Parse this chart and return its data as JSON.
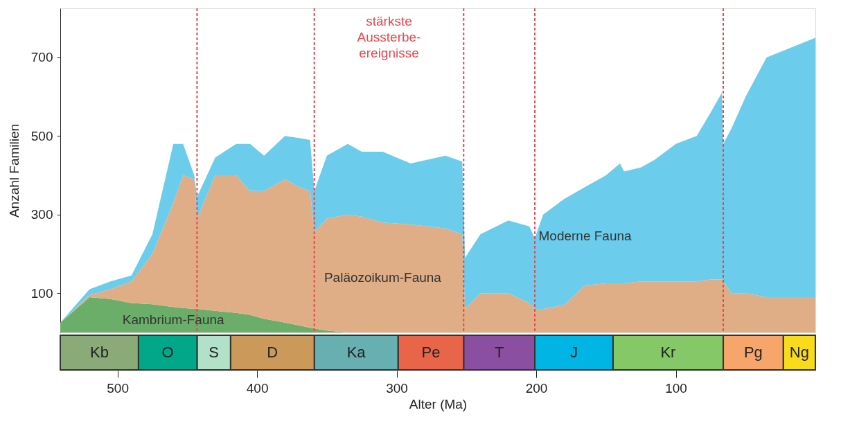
{
  "chart_data": [
    {
      "type": "area",
      "stacked": true,
      "ylabel": "Anzahl Familien",
      "tick_labels": "y",
      "x": [
        541,
        520,
        505,
        490,
        475,
        460,
        453,
        445,
        443,
        430,
        415,
        405,
        395,
        380,
        370,
        362,
        359,
        350,
        335,
        325,
        310,
        290,
        265,
        253,
        251,
        240,
        220,
        205,
        201,
        195,
        180,
        165,
        150,
        140,
        137,
        125,
        115,
        100,
        85,
        75,
        67,
        66,
        60,
        50,
        35,
        0
      ],
      "series": [
        {
          "name": "Kambrium-Fauna",
          "color": "#6aae6a",
          "values": [
            25,
            90,
            85,
            75,
            72,
            65,
            62,
            60,
            60,
            55,
            50,
            45,
            35,
            25,
            18,
            12,
            10,
            5,
            0,
            0,
            0,
            0,
            0,
            0,
            0,
            0,
            0,
            0,
            0,
            0,
            0,
            0,
            0,
            0,
            0,
            0,
            0,
            0,
            0,
            0,
            0,
            0,
            0,
            0,
            0,
            0
          ]
        },
        {
          "name": "Paläozoikum-Fauna",
          "color": "#dfae86",
          "values": [
            0,
            5,
            25,
            55,
            128,
            265,
            338,
            330,
            230,
            345,
            350,
            315,
            325,
            365,
            352,
            348,
            245,
            285,
            300,
            295,
            280,
            275,
            265,
            250,
            60,
            100,
            100,
            75,
            60,
            60,
            70,
            120,
            125,
            125,
            125,
            130,
            130,
            130,
            130,
            135,
            135,
            130,
            100,
            100,
            90,
            90
          ]
        },
        {
          "name": "Moderne Fauna",
          "color": "#6bcdeb",
          "values": [
            0,
            15,
            20,
            15,
            50,
            150,
            80,
            10,
            55,
            45,
            80,
            120,
            90,
            110,
            125,
            130,
            105,
            160,
            180,
            165,
            180,
            155,
            185,
            185,
            130,
            150,
            185,
            195,
            180,
            240,
            270,
            250,
            275,
            305,
            285,
            290,
            310,
            350,
            370,
            425,
            475,
            350,
            420,
            500,
            610,
            660
          ]
        }
      ],
      "xlim": [
        541,
        0
      ],
      "ylim": [
        0,
        825
      ],
      "yticks": [
        100,
        300,
        500,
        700
      ],
      "grid": false,
      "ref_lines": [
        {
          "axis": "x",
          "value": 443,
          "color": "#e8474f",
          "line_style": "dashed"
        },
        {
          "axis": "x",
          "value": 359,
          "color": "#e8474f",
          "line_style": "dashed"
        },
        {
          "axis": "x",
          "value": 252,
          "color": "#e8474f",
          "line_style": "dashed"
        },
        {
          "axis": "x",
          "value": 201,
          "color": "#e8474f",
          "line_style": "dashed"
        },
        {
          "axis": "x",
          "value": 66,
          "color": "#e8474f",
          "line_style": "dashed"
        }
      ],
      "annotations": [
        "stärkste\nAussterbe-\nereignisse"
      ]
    },
    {
      "type": "bar",
      "orientation": "horizontal",
      "stacked": true,
      "categories": [
        null
      ],
      "xlabel": "Alter (Ma)",
      "tick_labels": "x",
      "xlim": [
        541,
        0
      ],
      "xticks": [
        500,
        400,
        300,
        200,
        100
      ],
      "series": [
        {
          "name": "Ng",
          "color": "#f8dc1c",
          "values": [
            23
          ]
        },
        {
          "name": "Pg",
          "color": "#f6a66a",
          "values": [
            43
          ]
        },
        {
          "name": "Kr",
          "color": "#84c868",
          "values": [
            79
          ]
        },
        {
          "name": "J",
          "color": "#00b4e4",
          "values": [
            56
          ]
        },
        {
          "name": "T",
          "color": "#8a4fa0",
          "values": [
            51
          ]
        },
        {
          "name": "Pe",
          "color": "#e8654a",
          "values": [
            47
          ]
        },
        {
          "name": "Ka",
          "color": "#67afb0",
          "values": [
            60
          ]
        },
        {
          "name": "D",
          "color": "#cb9a5a",
          "values": [
            60
          ]
        },
        {
          "name": "S",
          "color": "#b3e1c8",
          "values": [
            24
          ]
        },
        {
          "name": "O",
          "color": "#00a88a",
          "values": [
            42
          ]
        },
        {
          "name": "Kb",
          "color": "#8aaa78",
          "values": [
            56
          ]
        }
      ]
    }
  ]
}
